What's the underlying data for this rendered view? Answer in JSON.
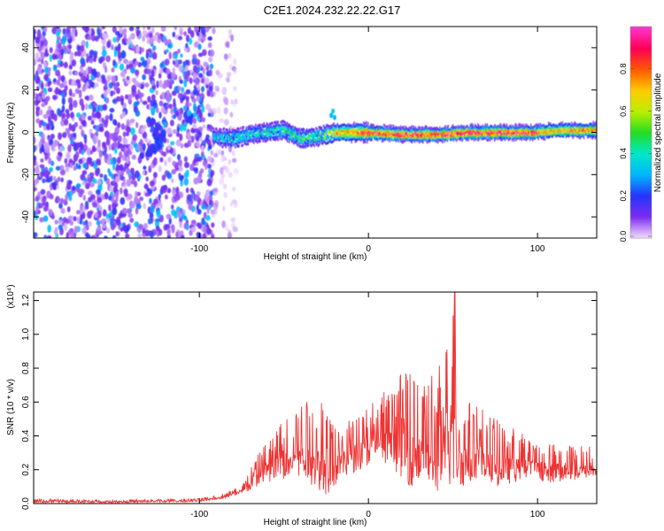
{
  "figure": {
    "title": "C2E1.2024.232.22.22.G17"
  },
  "chart_data": [
    {
      "type": "heatmap",
      "xlabel": "Height of straight line (km)",
      "ylabel": "Frequency (Hz)",
      "xlim": [
        -198,
        135
      ],
      "ylim": [
        -50,
        50
      ],
      "xticks": [
        -100,
        0,
        100
      ],
      "yticks": [
        -40,
        -20,
        0,
        20,
        40
      ],
      "colorbar": {
        "label": "Normalized spectral amplitude",
        "range": [
          0,
          1
        ],
        "ticks": [
          0.0,
          0.2,
          0.4,
          0.6,
          0.8
        ],
        "colors": [
          "#f2d9ff",
          "#7b2cf0",
          "#2436ff",
          "#00b8ff",
          "#00e8c8",
          "#22dd22",
          "#bbee00",
          "#ffcc00",
          "#ff5a00",
          "#ff0055",
          "#ff33cc"
        ]
      },
      "noise_region_x": [
        -198,
        -78
      ],
      "signal_trace": {
        "x": [
          -92,
          -80,
          -70,
          -60,
          -50,
          -40,
          -30,
          -20,
          -10,
          0,
          20,
          40,
          60,
          80,
          100,
          110,
          120,
          135
        ],
        "freq": [
          -2,
          -3,
          -1,
          0,
          1,
          -3,
          -2,
          0,
          0,
          0,
          -1,
          -1,
          0,
          0,
          0,
          1,
          1,
          1
        ],
        "amplitude": [
          0.35,
          0.45,
          0.4,
          0.45,
          0.45,
          0.5,
          0.55,
          0.7,
          0.8,
          0.9,
          0.95,
          0.95,
          0.95,
          0.95,
          0.9,
          0.75,
          0.8,
          0.85
        ]
      }
    },
    {
      "type": "line",
      "xlabel": "Height of straight line (km)",
      "ylabel": "SNR (10 * v/v)",
      "yscale_label": "(x10⁴)",
      "xlim": [
        -198,
        135
      ],
      "ylim": [
        0,
        1.25
      ],
      "xticks": [
        -100,
        0,
        100
      ],
      "yticks": [
        0.0,
        0.2,
        0.4,
        0.6,
        0.8,
        1.0,
        1.2
      ],
      "color": "#ee3333",
      "envelope": {
        "x": [
          -198,
          -150,
          -100,
          -85,
          -75,
          -65,
          -55,
          -45,
          -35,
          -25,
          -15,
          -5,
          5,
          15,
          25,
          35,
          45,
          50,
          55,
          65,
          75,
          85,
          95,
          110,
          135
        ],
        "low": [
          0.005,
          0.005,
          0.01,
          0.03,
          0.05,
          0.1,
          0.12,
          0.15,
          0.12,
          0.05,
          0.15,
          0.2,
          0.25,
          0.2,
          0.1,
          0.08,
          0.05,
          0.1,
          0.1,
          0.1,
          0.1,
          0.12,
          0.15,
          0.12,
          0.15
        ],
        "high": [
          0.03,
          0.02,
          0.03,
          0.06,
          0.12,
          0.3,
          0.45,
          0.55,
          0.65,
          0.6,
          0.45,
          0.6,
          0.6,
          0.75,
          0.8,
          0.75,
          0.85,
          1.25,
          0.7,
          0.6,
          0.5,
          0.45,
          0.4,
          0.35,
          0.35
        ]
      },
      "spike": {
        "x": 51,
        "y": 1.25
      }
    }
  ]
}
